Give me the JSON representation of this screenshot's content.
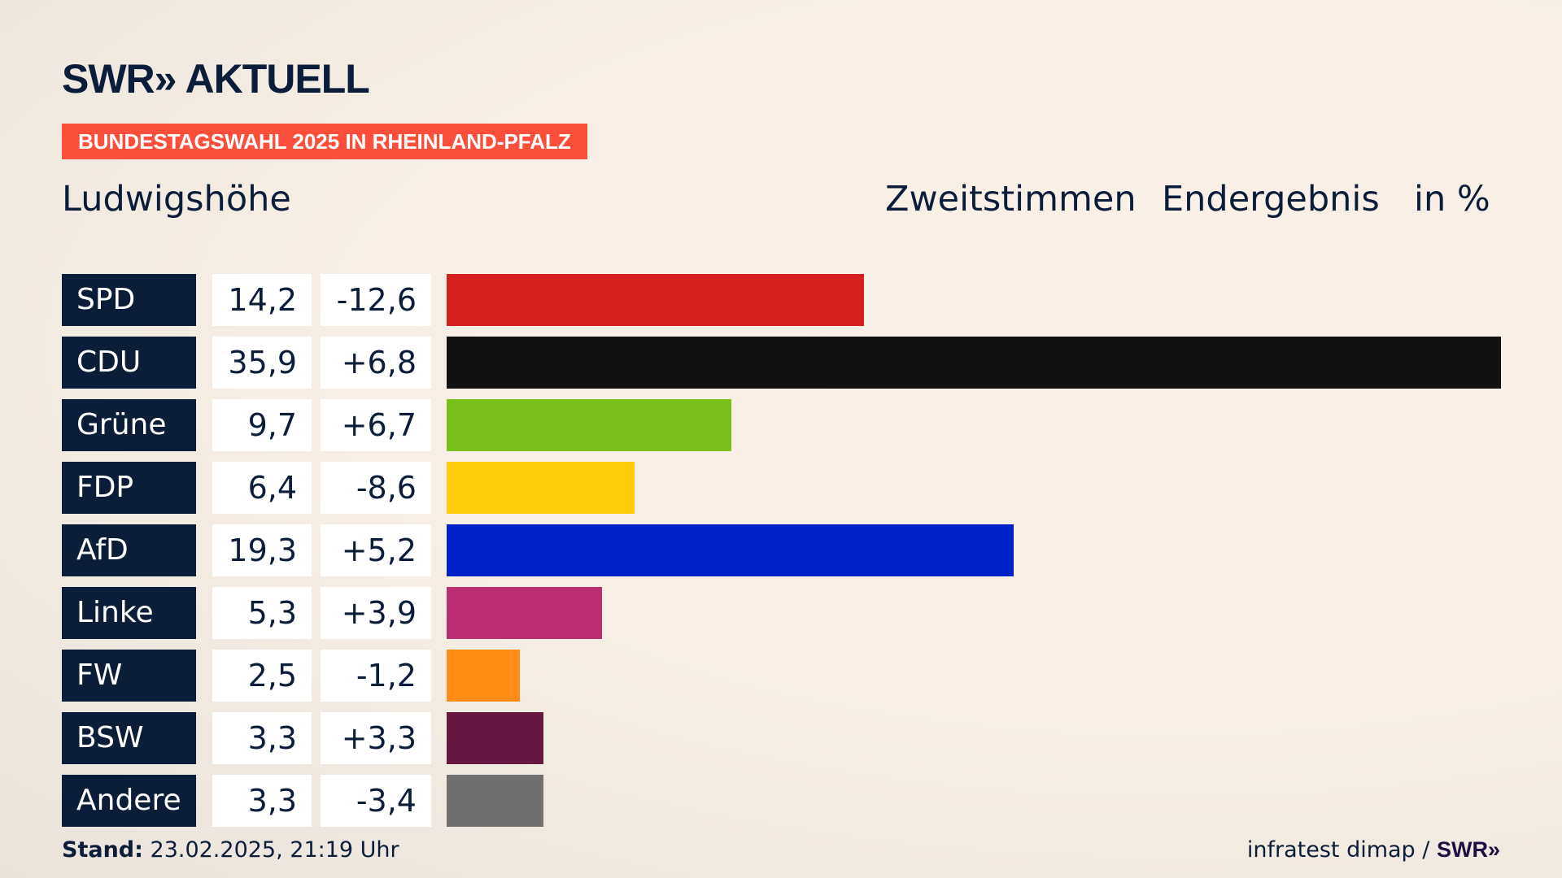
{
  "header": {
    "logo": "SWR» AKTUELL",
    "badge": "BUNDESTAGSWAHL 2025 IN RHEINLAND-PFALZ",
    "place": "Ludwigshöhe",
    "col1": "Zweitstimmen",
    "col2": "Endergebnis",
    "col3": "in %"
  },
  "chart_data": {
    "type": "bar",
    "orientation": "horizontal",
    "title": "Zweitstimmen Endergebnis in %",
    "categories": [
      "SPD",
      "CDU",
      "Grüne",
      "FDP",
      "AfD",
      "Linke",
      "FW",
      "BSW",
      "Andere"
    ],
    "values": [
      14.2,
      35.9,
      9.7,
      6.4,
      19.3,
      5.3,
      2.5,
      3.3,
      3.3
    ],
    "value_labels": [
      "14,2",
      "35,9",
      "9,7",
      "6,4",
      "19,3",
      "5,3",
      "2,5",
      "3,3",
      "3,3"
    ],
    "changes": [
      "-12,6",
      "+6,8",
      "+6,7",
      "-8,6",
      "+5,2",
      "+3,9",
      "-1,2",
      "+3,3",
      "-3,4"
    ],
    "colors": [
      "#d61f1f",
      "#121212",
      "#7abf1c",
      "#ffce0b",
      "#0020c8",
      "#bb2f72",
      "#ff8c14",
      "#661840",
      "#707070"
    ],
    "xlim": [
      0,
      35.9
    ]
  },
  "footer": {
    "stand_label": "Stand:",
    "stand_value": "23.02.2025, 21:19 Uhr",
    "source": "infratest dimap /",
    "source_logo": "SWR»"
  }
}
